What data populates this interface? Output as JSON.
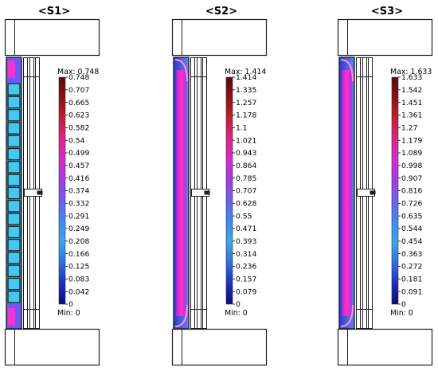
{
  "panels": [
    {
      "id": "S1",
      "title": "<S1>",
      "max_label": "Max: 0.748",
      "min_label": "Min: 0",
      "ticks": [
        "0.748",
        "0.707",
        "0.665",
        "0.623",
        "0.582",
        "0.54",
        "0.499",
        "0.457",
        "0.416",
        "0.374",
        "0.332",
        "0.291",
        "0.249",
        "0.208",
        "0.166",
        "0.125",
        "0.083",
        "0.042",
        "0"
      ],
      "pattern": "grid"
    },
    {
      "id": "S2",
      "title": "<S2>",
      "max_label": "Max: 1.414",
      "min_label": "Min: 0",
      "ticks": [
        "1.414",
        "1.335",
        "1.257",
        "1.178",
        "1.1",
        "1.021",
        "0.943",
        "0.864",
        "0.785",
        "0.707",
        "0.628",
        "0.55",
        "0.471",
        "0.393",
        "0.314",
        "0.236",
        "0.157",
        "0.079",
        "0"
      ],
      "pattern": "magenta"
    },
    {
      "id": "S3",
      "title": "<S3>",
      "max_label": "Max: 1.633",
      "min_label": "Min: 0",
      "ticks": [
        "1.633",
        "1.542",
        "1.451",
        "1.361",
        "1.27",
        "1.179",
        "1.089",
        "0.998",
        "0.907",
        "0.816",
        "0.726",
        "0.635",
        "0.544",
        "0.454",
        "0.363",
        "0.272",
        "0.181",
        "0.091",
        "0"
      ],
      "pattern": "magenta"
    }
  ],
  "colorbar_colors": [
    "#5c0a0a",
    "#8e1010",
    "#c41f3a",
    "#e0248a",
    "#d42ccc",
    "#a43ae8",
    "#6a62ef",
    "#3f8af0",
    "#3ea6e8",
    "#2f6fe0",
    "#1d2fbf",
    "#0a0a78"
  ],
  "colors": {
    "wall_fill": "#3bb8e6",
    "hot": "#ff1bc8",
    "frame": "#1e1e1e"
  }
}
